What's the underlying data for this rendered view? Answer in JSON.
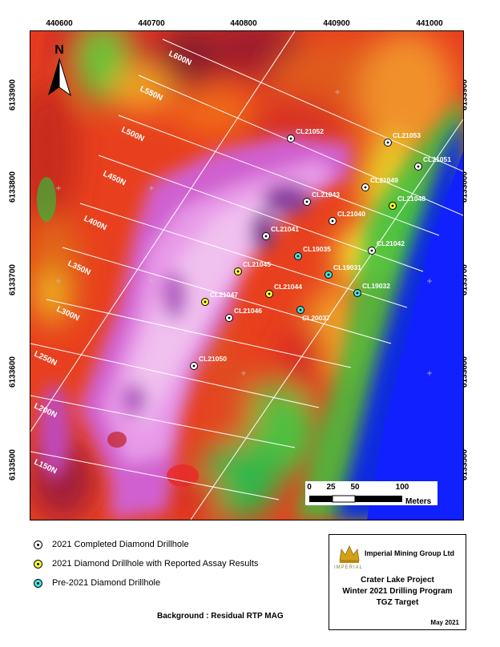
{
  "map": {
    "easting_ticks": [
      "440600",
      "440700",
      "440800",
      "440900",
      "441000"
    ],
    "northing_ticks": [
      "6133900",
      "6133800",
      "6133700",
      "6133600",
      "6133500"
    ],
    "north_label": "N",
    "line_labels": [
      "L600N",
      "L550N",
      "L500N",
      "L450N",
      "L400N",
      "L350N",
      "L300N",
      "L250N",
      "L200N",
      "L150N"
    ],
    "drillholes": [
      {
        "id": "CL21052",
        "category": "completed"
      },
      {
        "id": "CL21053",
        "category": "completed"
      },
      {
        "id": "CL21051",
        "category": "completed"
      },
      {
        "id": "CL21049",
        "category": "completed"
      },
      {
        "id": "CL21043",
        "category": "completed"
      },
      {
        "id": "CL21048",
        "category": "assay"
      },
      {
        "id": "CL21040",
        "category": "completed"
      },
      {
        "id": "CL21041",
        "category": "completed"
      },
      {
        "id": "CL19035",
        "category": "pre2021"
      },
      {
        "id": "CL21042",
        "category": "completed"
      },
      {
        "id": "CL21045",
        "category": "assay"
      },
      {
        "id": "CL19031",
        "category": "pre2021"
      },
      {
        "id": "CL21044",
        "category": "assay"
      },
      {
        "id": "CL19032",
        "category": "pre2021"
      },
      {
        "id": "CL21047",
        "category": "assay"
      },
      {
        "id": "CL21046",
        "category": "completed"
      },
      {
        "id": "CL20037",
        "category": "pre2021"
      },
      {
        "id": "CL21050",
        "category": "completed"
      }
    ],
    "scale_bar": {
      "labels": [
        "0",
        "25",
        "50",
        "100"
      ],
      "unit": "Meters"
    }
  },
  "legend": {
    "items": [
      {
        "label": "2021 Completed Diamond Drillhole",
        "color": "#ffffff"
      },
      {
        "label": "2021 Diamond Drillhole with Reported Assay Results",
        "color": "#ffff33"
      },
      {
        "label": "Pre-2021 Diamond Drillhole",
        "color": "#44e6e0"
      }
    ]
  },
  "background_note": "Background : Residual RTP MAG",
  "title_block": {
    "company": "Imperial Mining Group Ltd",
    "logo_text": "IMPERIAL",
    "logo_sub": "mining group ltd",
    "project": "Crater Lake Project",
    "program": "Winter 2021 Drilling Program",
    "target": "TGZ Target",
    "date": "May 2021"
  },
  "colors": {
    "completed": "#ffffff",
    "assay": "#ffff33",
    "pre2021": "#44e6e0"
  }
}
